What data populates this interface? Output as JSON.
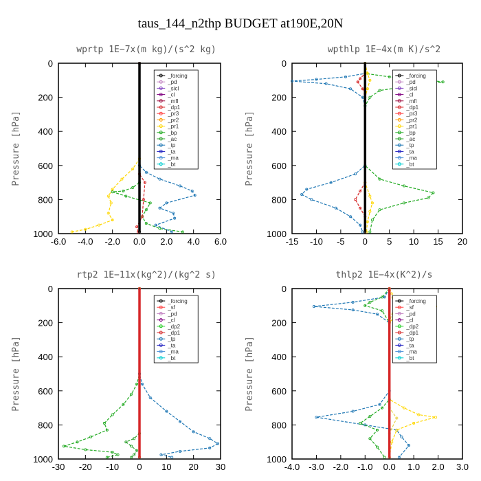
{
  "figure": {
    "title": "taus_144_n2thp  BUDGET at190E,20N"
  },
  "chart_data": [
    {
      "type": "line",
      "title": "wprtp  1E−7x(m kg)/(s^2 kg)",
      "xlabel": "",
      "ylabel": "Pressure [hPa]",
      "xlim": [
        -6,
        6
      ],
      "ylim": [
        1000,
        0
      ],
      "xticks": [
        "-6.0",
        "-4.0",
        "-2.0",
        "0.0",
        "2.0",
        "4.0",
        "6.0"
      ],
      "yticks": [
        "0",
        "200",
        "400",
        "600",
        "800",
        "1000"
      ],
      "legend": [
        "_forcing",
        "_pd",
        "_sicl",
        "_cl",
        "_mfl",
        "_dp1",
        "_pr3",
        "_pr2",
        "_pr1",
        "_bp",
        "_ac",
        "_tp",
        "_ta",
        "_ma",
        "_bt"
      ],
      "series": [
        {
          "name": "_pr1",
          "color": "#ffd700",
          "points": [
            [
              0,
              0
            ],
            [
              0,
              560
            ],
            [
              -0.5,
              620
            ],
            [
              -1.3,
              680
            ],
            [
              -2.0,
              740
            ],
            [
              -2.3,
              780
            ],
            [
              -2.1,
              820
            ],
            [
              -2.3,
              880
            ],
            [
              -2.0,
              920
            ],
            [
              -3.0,
              950
            ],
            [
              -4.0,
              975
            ],
            [
              -5.0,
              990
            ]
          ]
        },
        {
          "name": "_bp",
          "color": "#22aa22",
          "points": [
            [
              0,
              0
            ],
            [
              0,
              700
            ],
            [
              -0.5,
              730
            ],
            [
              -1.2,
              750
            ],
            [
              -2.0,
              755
            ],
            [
              -1.0,
              780
            ],
            [
              0.8,
              820
            ],
            [
              0.5,
              860
            ],
            [
              0.2,
              900
            ],
            [
              0.5,
              940
            ],
            [
              1.5,
              970
            ],
            [
              3.2,
              990
            ]
          ]
        },
        {
          "name": "_tp",
          "color": "#1f77b4",
          "points": [
            [
              0,
              0
            ],
            [
              0,
              600
            ],
            [
              0.5,
              640
            ],
            [
              1.5,
              680
            ],
            [
              3.0,
              720
            ],
            [
              3.9,
              750
            ],
            [
              4.1,
              775
            ],
            [
              2.0,
              820
            ],
            [
              1.5,
              850
            ],
            [
              2.5,
              880
            ],
            [
              2.6,
              910
            ],
            [
              1.2,
              950
            ],
            [
              2.4,
              990
            ]
          ]
        },
        {
          "name": "_dp1",
          "color": "#d62728",
          "points": [
            [
              0,
              0
            ],
            [
              0,
              650
            ],
            [
              0.4,
              700
            ],
            [
              0.3,
              800
            ],
            [
              0.2,
              900
            ],
            [
              -0.2,
              960
            ],
            [
              -0.1,
              990
            ]
          ]
        },
        {
          "name": "_forcing",
          "color": "#000000",
          "points": [
            [
              0,
              0
            ],
            [
              0,
              990
            ]
          ]
        }
      ]
    },
    {
      "type": "line",
      "title": "wpthlp  1E−4x(m K)/s^2",
      "xlabel": "",
      "ylabel": "Pressure [hPa]",
      "xlim": [
        -15,
        20
      ],
      "ylim": [
        1000,
        0
      ],
      "xticks": [
        "-15",
        "-10",
        "-5",
        "0",
        "5",
        "10",
        "15",
        "20"
      ],
      "yticks": [
        "0",
        "200",
        "400",
        "600",
        "800",
        "1000"
      ],
      "legend": [
        "_forcing",
        "_pd",
        "_sicl",
        "_cl",
        "_mfl",
        "_dp1",
        "_pr3",
        "_pr2",
        "_pr1",
        "_bp",
        "_ac",
        "_tp",
        "_ta",
        "_ma",
        "_bt"
      ],
      "series": [
        {
          "name": "_tp",
          "color": "#1f77b4",
          "points": [
            [
              0,
              0
            ],
            [
              0,
              60
            ],
            [
              -4,
              80
            ],
            [
              -10,
              95
            ],
            [
              -15,
              105
            ],
            [
              -8,
              120
            ],
            [
              -3,
              150
            ],
            [
              -0.5,
              200
            ],
            [
              0,
              250
            ],
            [
              0,
              600
            ],
            [
              -2,
              650
            ],
            [
              -7,
              700
            ],
            [
              -12,
              740
            ],
            [
              -13,
              770
            ],
            [
              -11,
              800
            ],
            [
              -6,
              850
            ],
            [
              -3,
              900
            ],
            [
              -1,
              950
            ],
            [
              -0.5,
              990
            ]
          ]
        },
        {
          "name": "_bp",
          "color": "#22aa22",
          "points": [
            [
              0,
              0
            ],
            [
              0,
              60
            ],
            [
              5,
              80
            ],
            [
              12,
              95
            ],
            [
              16,
              110
            ],
            [
              10,
              130
            ],
            [
              3,
              160
            ],
            [
              1,
              200
            ],
            [
              0,
              250
            ],
            [
              0,
              600
            ],
            [
              3,
              680
            ],
            [
              8,
              720
            ],
            [
              14,
              760
            ],
            [
              13,
              790
            ],
            [
              8,
              820
            ],
            [
              3,
              860
            ],
            [
              1.5,
              920
            ],
            [
              1,
              990
            ]
          ]
        },
        {
          "name": "_dp1",
          "color": "#d62728",
          "points": [
            [
              0,
              0
            ],
            [
              0,
              60
            ],
            [
              -1.0,
              90
            ],
            [
              -1.5,
              110
            ],
            [
              -0.5,
              150
            ],
            [
              0,
              180
            ],
            [
              0,
              700
            ],
            [
              -1.0,
              750
            ],
            [
              -2.0,
              800
            ],
            [
              -1.0,
              850
            ],
            [
              0,
              900
            ],
            [
              0,
              990
            ]
          ]
        },
        {
          "name": "_pr1",
          "color": "#ffd700",
          "points": [
            [
              0,
              0
            ],
            [
              0.5,
              60
            ],
            [
              1.0,
              100
            ],
            [
              0.5,
              150
            ],
            [
              0,
              200
            ],
            [
              0,
              700
            ],
            [
              1.0,
              780
            ],
            [
              1.5,
              820
            ],
            [
              1.0,
              870
            ],
            [
              0.5,
              930
            ],
            [
              0.3,
              990
            ]
          ]
        },
        {
          "name": "_forcing",
          "color": "#000000",
          "points": [
            [
              0,
              0
            ],
            [
              0,
              990
            ]
          ]
        }
      ]
    },
    {
      "type": "line",
      "title": "rtp2  1E−11x(kg^2)/(kg^2 s)",
      "xlabel": "",
      "ylabel": "Pressure [hPa]",
      "xlim": [
        -30,
        30
      ],
      "ylim": [
        1000,
        0
      ],
      "xticks": [
        "-30",
        "-20",
        "-10",
        "0",
        "10",
        "20",
        "30"
      ],
      "yticks": [
        "0",
        "200",
        "400",
        "600",
        "800",
        "1000"
      ],
      "legend": [
        "_forcing",
        "_sf",
        "_pd",
        "_cl",
        "_dp2",
        "_dp1",
        "_tp",
        "_ta",
        "_ma",
        "_bt"
      ],
      "series": [
        {
          "name": "_dp1",
          "color": "#22aa22",
          "points": [
            [
              0,
              0
            ],
            [
              0,
              500
            ],
            [
              -1,
              560
            ],
            [
              -3,
              620
            ],
            [
              -6,
              680
            ],
            [
              -10,
              740
            ],
            [
              -13,
              790
            ],
            [
              -12,
              830
            ],
            [
              -18,
              870
            ],
            [
              -23,
              900
            ],
            [
              -28,
              925
            ],
            [
              -20,
              945
            ],
            [
              -10,
              960
            ],
            [
              -8,
              975
            ],
            [
              -12,
              990
            ]
          ]
        },
        {
          "name": "_tp",
          "color": "#1f77b4",
          "points": [
            [
              0,
              0
            ],
            [
              0,
              500
            ],
            [
              1,
              560
            ],
            [
              4,
              640
            ],
            [
              10,
              720
            ],
            [
              15,
              780
            ],
            [
              20,
              840
            ],
            [
              26,
              880
            ],
            [
              29,
              910
            ],
            [
              26,
              935
            ],
            [
              15,
              955
            ],
            [
              8,
              975
            ],
            [
              12,
              990
            ]
          ]
        },
        {
          "name": "_dp2",
          "color": "#2ca02c",
          "points": [
            [
              0,
              0
            ],
            [
              0,
              850
            ],
            [
              -2,
              880
            ],
            [
              -5,
              900
            ],
            [
              -3,
              925
            ],
            [
              -1,
              950
            ],
            [
              -2,
              975
            ],
            [
              -3,
              990
            ]
          ]
        },
        {
          "name": "_pd",
          "color": "#ffd700",
          "points": [
            [
              0,
              0
            ],
            [
              0,
              990
            ]
          ]
        },
        {
          "name": "_forcing",
          "color": "#d62728",
          "points": [
            [
              0,
              0
            ],
            [
              0,
              990
            ]
          ]
        }
      ]
    },
    {
      "type": "line",
      "title": "thlp2  1E−4x(K^2)/s",
      "xlabel": "",
      "ylabel": "Pressure [hPa]",
      "xlim": [
        -4,
        3
      ],
      "ylim": [
        1000,
        0
      ],
      "xticks": [
        "-4.0",
        "-3.0",
        "-2.0",
        "-1.0",
        "0.0",
        "1.0",
        "2.0",
        "3.0"
      ],
      "yticks": [
        "0",
        "200",
        "400",
        "600",
        "800",
        "1000"
      ],
      "legend": [
        "_forcing",
        "_sf",
        "_pd",
        "_cl",
        "_dp2",
        "_dp1",
        "_tp",
        "_ta",
        "_ma",
        "_bt"
      ],
      "series": [
        {
          "name": "_tp",
          "color": "#1f77b4",
          "points": [
            [
              0,
              0
            ],
            [
              -0.2,
              50
            ],
            [
              -1.5,
              80
            ],
            [
              -3.1,
              105
            ],
            [
              -1.5,
              125
            ],
            [
              -0.5,
              150
            ],
            [
              0,
              200
            ],
            [
              0,
              600
            ],
            [
              -0.4,
              680
            ],
            [
              -1.5,
              720
            ],
            [
              -3.0,
              755
            ],
            [
              -1.0,
              800
            ],
            [
              0.3,
              830
            ],
            [
              0.5,
              870
            ],
            [
              0.8,
              920
            ],
            [
              0.4,
              990
            ]
          ]
        },
        {
          "name": "_pd",
          "color": "#ffd700",
          "points": [
            [
              0,
              0
            ],
            [
              0.2,
              50
            ],
            [
              1.0,
              80
            ],
            [
              1.9,
              105
            ],
            [
              1.0,
              125
            ],
            [
              0.3,
              150
            ],
            [
              0,
              200
            ],
            [
              0,
              650
            ],
            [
              0.6,
              700
            ],
            [
              1.2,
              740
            ],
            [
              1.9,
              755
            ],
            [
              1.0,
              790
            ],
            [
              0.3,
              830
            ],
            [
              0.1,
              900
            ],
            [
              0,
              990
            ]
          ]
        },
        {
          "name": "_dp1",
          "color": "#22aa22",
          "points": [
            [
              0,
              0
            ],
            [
              -0.3,
              50
            ],
            [
              -0.8,
              80
            ],
            [
              -1.0,
              100
            ],
            [
              -0.3,
              130
            ],
            [
              0,
              200
            ],
            [
              0,
              650
            ],
            [
              -0.3,
              700
            ],
            [
              -0.8,
              750
            ],
            [
              -1.2,
              790
            ],
            [
              -0.5,
              830
            ],
            [
              -0.8,
              880
            ],
            [
              -0.5,
              930
            ],
            [
              -0.2,
              990
            ]
          ]
        },
        {
          "name": "_cl",
          "color": "#e8d24a",
          "points": [
            [
              0,
              0
            ],
            [
              0.2,
              100
            ],
            [
              0,
              200
            ],
            [
              0,
              700
            ],
            [
              0.3,
              760
            ],
            [
              0,
              850
            ],
            [
              0,
              990
            ]
          ]
        },
        {
          "name": "_forcing",
          "color": "#d62728",
          "points": [
            [
              0,
              0
            ],
            [
              0,
              990
            ]
          ]
        }
      ]
    }
  ]
}
